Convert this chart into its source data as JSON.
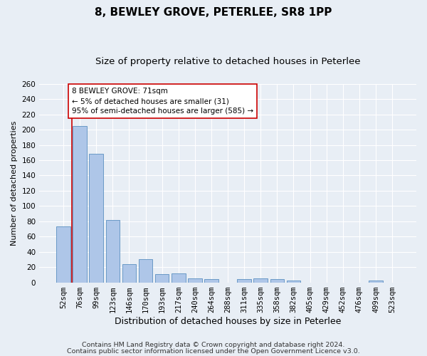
{
  "title1": "8, BEWLEY GROVE, PETERLEE, SR8 1PP",
  "title2": "Size of property relative to detached houses in Peterlee",
  "xlabel": "Distribution of detached houses by size in Peterlee",
  "ylabel": "Number of detached properties",
  "categories": [
    "52sqm",
    "76sqm",
    "99sqm",
    "123sqm",
    "146sqm",
    "170sqm",
    "193sqm",
    "217sqm",
    "240sqm",
    "264sqm",
    "288sqm",
    "311sqm",
    "335sqm",
    "358sqm",
    "382sqm",
    "405sqm",
    "429sqm",
    "452sqm",
    "476sqm",
    "499sqm",
    "523sqm"
  ],
  "values": [
    73,
    205,
    168,
    82,
    24,
    30,
    11,
    12,
    5,
    4,
    0,
    4,
    5,
    4,
    2,
    0,
    0,
    0,
    0,
    2,
    0
  ],
  "bar_color": "#aec6e8",
  "bar_edge_color": "#5a8fc0",
  "highlight_line_color": "#cc0000",
  "annotation_text": "8 BEWLEY GROVE: 71sqm\n← 5% of detached houses are smaller (31)\n95% of semi-detached houses are larger (585) →",
  "annotation_box_color": "#ffffff",
  "annotation_box_edge": "#cc0000",
  "ylim": [
    0,
    260
  ],
  "yticks": [
    0,
    20,
    40,
    60,
    80,
    100,
    120,
    140,
    160,
    180,
    200,
    220,
    240,
    260
  ],
  "background_color": "#e8eef5",
  "grid_color": "#ffffff",
  "footer1": "Contains HM Land Registry data © Crown copyright and database right 2024.",
  "footer2": "Contains public sector information licensed under the Open Government Licence v3.0.",
  "title1_fontsize": 11,
  "title2_fontsize": 9.5,
  "xlabel_fontsize": 9,
  "ylabel_fontsize": 8,
  "tick_fontsize": 7.5,
  "footer_fontsize": 6.8,
  "annotation_fontsize": 7.5
}
